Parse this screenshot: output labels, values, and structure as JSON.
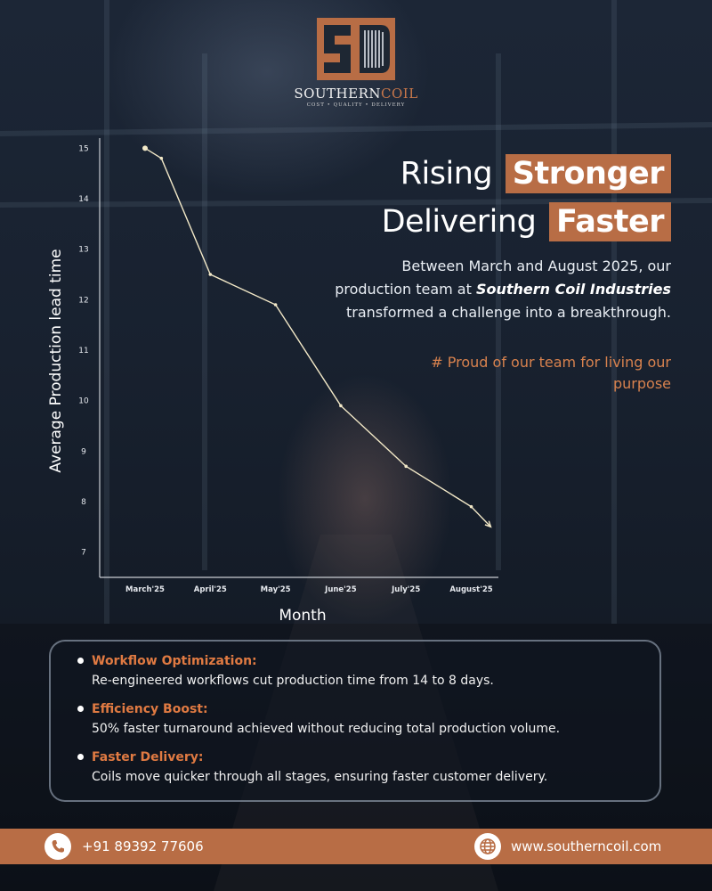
{
  "brand": {
    "name_main": "SOUTHERN",
    "name_accent": "COIL",
    "tagline": "COST • QUALITY • DELIVERY",
    "colors": {
      "accent": "#b86d45",
      "accent_text": "#d8824e",
      "background": "#18212f"
    }
  },
  "headline": {
    "line1_plain": "Rising",
    "line1_highlight": "Stronger",
    "line2_plain": "Delivering",
    "line2_highlight": "Faster"
  },
  "intro": {
    "before": "Between March and August 2025, our production team at",
    "company": "Southern Coil Industries",
    "after": "transformed a challenge into a breakthrough."
  },
  "tagline_proud": "# Proud of our team for living our purpose",
  "chart_data": {
    "type": "line",
    "categories": [
      "March'25",
      "April'25",
      "May'25",
      "June'25",
      "July'25",
      "August'25"
    ],
    "x": [
      0,
      0.25,
      1,
      2,
      3,
      4,
      5,
      5.3
    ],
    "values": [
      15.0,
      14.8,
      12.5,
      11.9,
      9.9,
      8.7,
      7.9,
      7.5
    ],
    "ylabel": "Average Production lead time",
    "xlabel": "Month",
    "yticks": [
      "7",
      "8",
      "9",
      "10",
      "11",
      "12",
      "13",
      "14",
      "15"
    ],
    "ylim": [
      6.5,
      15.2
    ],
    "grid": false,
    "legend": "none",
    "line_color": "#f3e9c8",
    "arrow_end": true
  },
  "features": [
    {
      "title": "Workflow Optimization:",
      "desc": "Re-engineered workflows cut production time from 14 to 8 days."
    },
    {
      "title": "Efficiency Boost:",
      "desc": "50% faster turnaround achieved without reducing total production volume."
    },
    {
      "title": "Faster Delivery:",
      "desc": "Coils move quicker through all stages, ensuring faster customer delivery."
    }
  ],
  "footer": {
    "phone_icon": "phone-icon",
    "phone": "+91 89392 77606",
    "web_icon": "globe-icon",
    "website": "www.southerncoil.com"
  }
}
